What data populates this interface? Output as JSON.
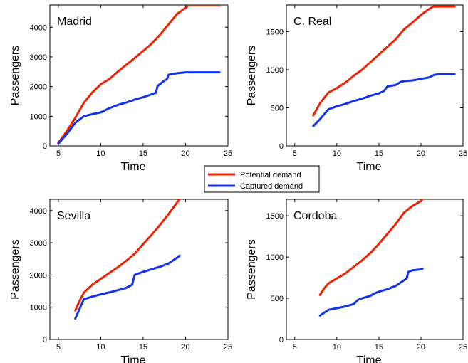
{
  "chart_data": [
    {
      "type": "line",
      "title": "Madrid",
      "xlabel": "Time",
      "ylabel": "Passengers",
      "xlim": [
        4,
        25
      ],
      "ylim": [
        0,
        4750
      ],
      "xticks": [
        5,
        10,
        15,
        20,
        25
      ],
      "yticks": [
        0,
        1000,
        2000,
        3000,
        4000
      ],
      "grid": false,
      "series": [
        {
          "name": "Potential demand",
          "color": "#ee2200",
          "x": [
            5,
            6,
            7,
            8,
            9,
            10,
            11,
            12,
            13,
            14,
            15,
            16,
            17,
            18,
            19,
            20,
            20.3,
            21,
            22,
            23,
            24
          ],
          "y": [
            100,
            500,
            950,
            1450,
            1800,
            2080,
            2250,
            2500,
            2730,
            2960,
            3200,
            3450,
            3750,
            4100,
            4450,
            4650,
            4740,
            4740,
            4740,
            4740,
            4740
          ]
        },
        {
          "name": "Captured demand",
          "color": "#1133ee",
          "x": [
            5,
            6,
            7,
            8,
            9,
            10,
            11,
            12,
            13,
            14,
            15,
            16,
            16.5,
            16.7,
            17.5,
            17.8,
            18,
            19,
            20,
            21,
            22,
            23,
            24
          ],
          "y": [
            80,
            400,
            780,
            1000,
            1070,
            1130,
            1270,
            1380,
            1460,
            1560,
            1640,
            1740,
            1790,
            2020,
            2200,
            2250,
            2400,
            2450,
            2480,
            2480,
            2480,
            2480,
            2480
          ]
        }
      ]
    },
    {
      "type": "line",
      "title": "C. Real",
      "xlabel": "Time",
      "ylabel": "Passengers",
      "xlim": [
        4,
        25
      ],
      "ylim": [
        0,
        1850
      ],
      "xticks": [
        5,
        10,
        15,
        20,
        25
      ],
      "yticks": [
        0,
        500,
        1000,
        1500
      ],
      "grid": false,
      "series": [
        {
          "name": "Potential demand",
          "color": "#ee2200",
          "x": [
            7.2,
            8,
            9,
            10,
            11,
            12,
            13,
            14,
            15,
            16,
            17,
            18,
            19,
            20,
            21,
            21.5,
            22,
            23,
            24
          ],
          "y": [
            400,
            560,
            700,
            760,
            830,
            920,
            1000,
            1100,
            1200,
            1300,
            1400,
            1530,
            1620,
            1720,
            1800,
            1830,
            1830,
            1830,
            1830
          ]
        },
        {
          "name": "Captured demand",
          "color": "#1133ee",
          "x": [
            7.2,
            8,
            9,
            10,
            11,
            12,
            13,
            14,
            15,
            15.6,
            16,
            17,
            17.6,
            18,
            19,
            20,
            21,
            21.5,
            22,
            23,
            24
          ],
          "y": [
            260,
            350,
            480,
            520,
            550,
            590,
            620,
            660,
            690,
            720,
            780,
            800,
            840,
            850,
            860,
            880,
            900,
            930,
            940,
            940,
            940
          ]
        }
      ]
    },
    {
      "type": "line",
      "title": "Sevilla",
      "xlabel": "Time",
      "ylabel": "Passengers",
      "xlim": [
        4,
        25
      ],
      "ylim": [
        0,
        4350
      ],
      "xticks": [
        5,
        10,
        15,
        20,
        25
      ],
      "yticks": [
        0,
        1000,
        2000,
        3000,
        4000
      ],
      "grid": false,
      "series": [
        {
          "name": "Potential demand",
          "color": "#ee2200",
          "x": [
            7,
            7.5,
            8,
            9,
            10,
            11,
            12,
            13,
            14,
            15,
            16,
            17,
            18,
            19,
            19.3
          ],
          "y": [
            900,
            1200,
            1450,
            1700,
            1880,
            2060,
            2240,
            2440,
            2660,
            2960,
            3250,
            3560,
            3900,
            4250,
            4350
          ]
        },
        {
          "name": "Captured demand",
          "color": "#1133ee",
          "x": [
            7,
            7.5,
            8,
            9,
            10,
            11,
            12,
            13,
            13.7,
            14,
            15,
            16,
            17,
            18,
            19,
            19.3
          ],
          "y": [
            650,
            950,
            1250,
            1330,
            1400,
            1460,
            1530,
            1600,
            1700,
            2000,
            2100,
            2180,
            2260,
            2360,
            2540,
            2600
          ]
        }
      ]
    },
    {
      "type": "line",
      "title": "Cordoba",
      "xlabel": "Time",
      "ylabel": "Passengers",
      "xlim": [
        4,
        25
      ],
      "ylim": [
        0,
        1700
      ],
      "xticks": [
        5,
        10,
        15,
        20,
        25
      ],
      "yticks": [
        0,
        500,
        1000,
        1500
      ],
      "grid": false,
      "series": [
        {
          "name": "Potential demand",
          "color": "#ee2200",
          "x": [
            8,
            8.5,
            9,
            10,
            11,
            12,
            13,
            14,
            15,
            16,
            17,
            18,
            19,
            20,
            20.2
          ],
          "y": [
            540,
            620,
            680,
            740,
            800,
            880,
            960,
            1050,
            1160,
            1280,
            1400,
            1540,
            1620,
            1680,
            1700
          ]
        },
        {
          "name": "Captured demand",
          "color": "#1133ee",
          "x": [
            8,
            9,
            10,
            11,
            12,
            12.5,
            13,
            14,
            14.5,
            15,
            16,
            17,
            18,
            18.3,
            18.5,
            19,
            20,
            20.2
          ],
          "y": [
            290,
            360,
            380,
            400,
            430,
            480,
            500,
            530,
            560,
            580,
            610,
            650,
            720,
            740,
            820,
            840,
            850,
            860
          ]
        }
      ]
    }
  ],
  "legend": {
    "placement": "center",
    "items": [
      {
        "label": "Potential demand",
        "color": "#ee2200"
      },
      {
        "label": "Captured demand",
        "color": "#1133ee"
      }
    ]
  }
}
